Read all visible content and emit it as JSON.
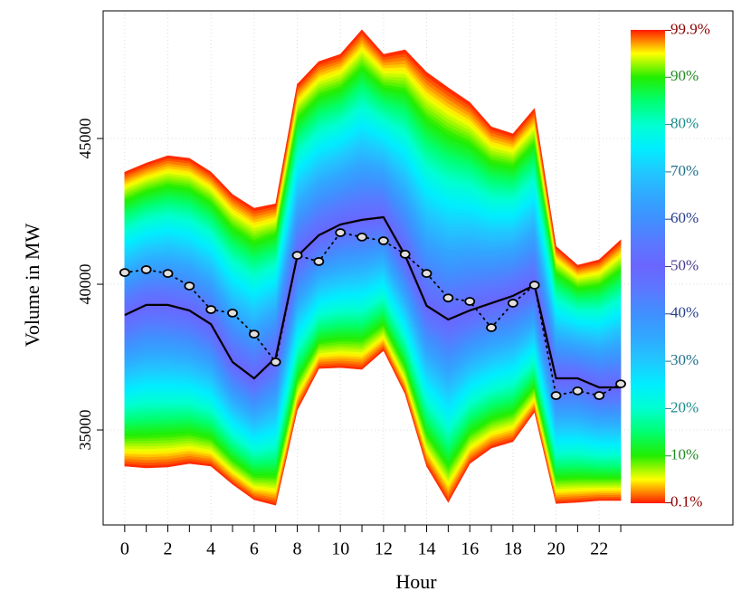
{
  "chart_data": {
    "type": "fan",
    "x_label": "Hour",
    "y_label": "Volume in MW",
    "x": [
      0,
      1,
      2,
      3,
      4,
      5,
      6,
      7,
      8,
      9,
      10,
      11,
      12,
      13,
      14,
      15,
      16,
      17,
      18,
      19,
      20,
      21,
      22,
      23
    ],
    "lower": [
      33760,
      33700,
      33730,
      33850,
      33760,
      33140,
      32610,
      32420,
      35680,
      37110,
      37140,
      37080,
      37730,
      36240,
      33760,
      32520,
      33850,
      34380,
      34600,
      35620,
      32480,
      32520,
      32580,
      32580
    ],
    "upper": [
      43850,
      44160,
      44410,
      44320,
      43850,
      43080,
      42610,
      42760,
      46860,
      47640,
      47890,
      48730,
      47890,
      48040,
      47270,
      46740,
      46240,
      45400,
      45160,
      46030,
      41300,
      40650,
      40840,
      41520
    ],
    "median": [
      38940,
      39290,
      39290,
      39100,
      38630,
      37330,
      36770,
      37480,
      40960,
      41680,
      42050,
      42210,
      42300,
      40990,
      39260,
      38790,
      39100,
      39350,
      39600,
      39970,
      36770,
      36770,
      36460,
      36460
    ],
    "observed": [
      40400,
      40500,
      40370,
      39940,
      39130,
      39010,
      38290,
      37330,
      40990,
      40780,
      41770,
      41620,
      41490,
      41030,
      40370,
      39530,
      39410,
      38510,
      39350,
      39970,
      36180,
      36340,
      36180,
      36580
    ],
    "xlim": [
      -1,
      28.2
    ],
    "ylim": [
      31740,
      49380
    ],
    "xticks": [
      0,
      2,
      4,
      6,
      8,
      10,
      12,
      14,
      16,
      18,
      20,
      22
    ],
    "xminor_ticks": [
      1,
      3,
      5,
      7,
      9,
      11,
      13,
      15,
      17,
      19,
      21,
      23
    ],
    "yticks": [
      35000,
      40000,
      45000
    ],
    "grid": true,
    "line_color": "#000000",
    "point_fill": "#e0e0e0",
    "colorscale": [
      "#ff1a00",
      "#ffff00",
      "#22ee00",
      "#00ff70",
      "#00ffd0",
      "#00eeff",
      "#20c8ff",
      "#30a8ff",
      "#4090ff",
      "#5a78ff",
      "#6a66ff",
      "#5a78ff",
      "#4090ff",
      "#30a8ff",
      "#20c8ff",
      "#00eeff",
      "#00ffd0",
      "#00ff70",
      "#22ee00",
      "#ffff00",
      "#ff1a00"
    ],
    "colorbar_lim": [
      0,
      100
    ],
    "colorbar_ticks": [
      {
        "value": 0.1,
        "label": "0.1%"
      },
      {
        "value": 10,
        "label": "10%"
      },
      {
        "value": 20,
        "label": "20%"
      },
      {
        "value": 30,
        "label": "30%"
      },
      {
        "value": 40,
        "label": "40%"
      },
      {
        "value": 50,
        "label": "50%"
      },
      {
        "value": 60,
        "label": "60%"
      },
      {
        "value": 70,
        "label": "70%"
      },
      {
        "value": 80,
        "label": "80%"
      },
      {
        "value": 90,
        "label": "90%"
      },
      {
        "value": 99.9,
        "label": "99.9%"
      }
    ],
    "colorbar_label_colors": [
      "#8b0000",
      "#228b22",
      "#1a8a8a",
      "#1f6f8b",
      "#27408b",
      "#483d8b",
      "#27408b",
      "#1f6f8b",
      "#1a8a8a",
      "#228b22",
      "#8b0000"
    ]
  }
}
